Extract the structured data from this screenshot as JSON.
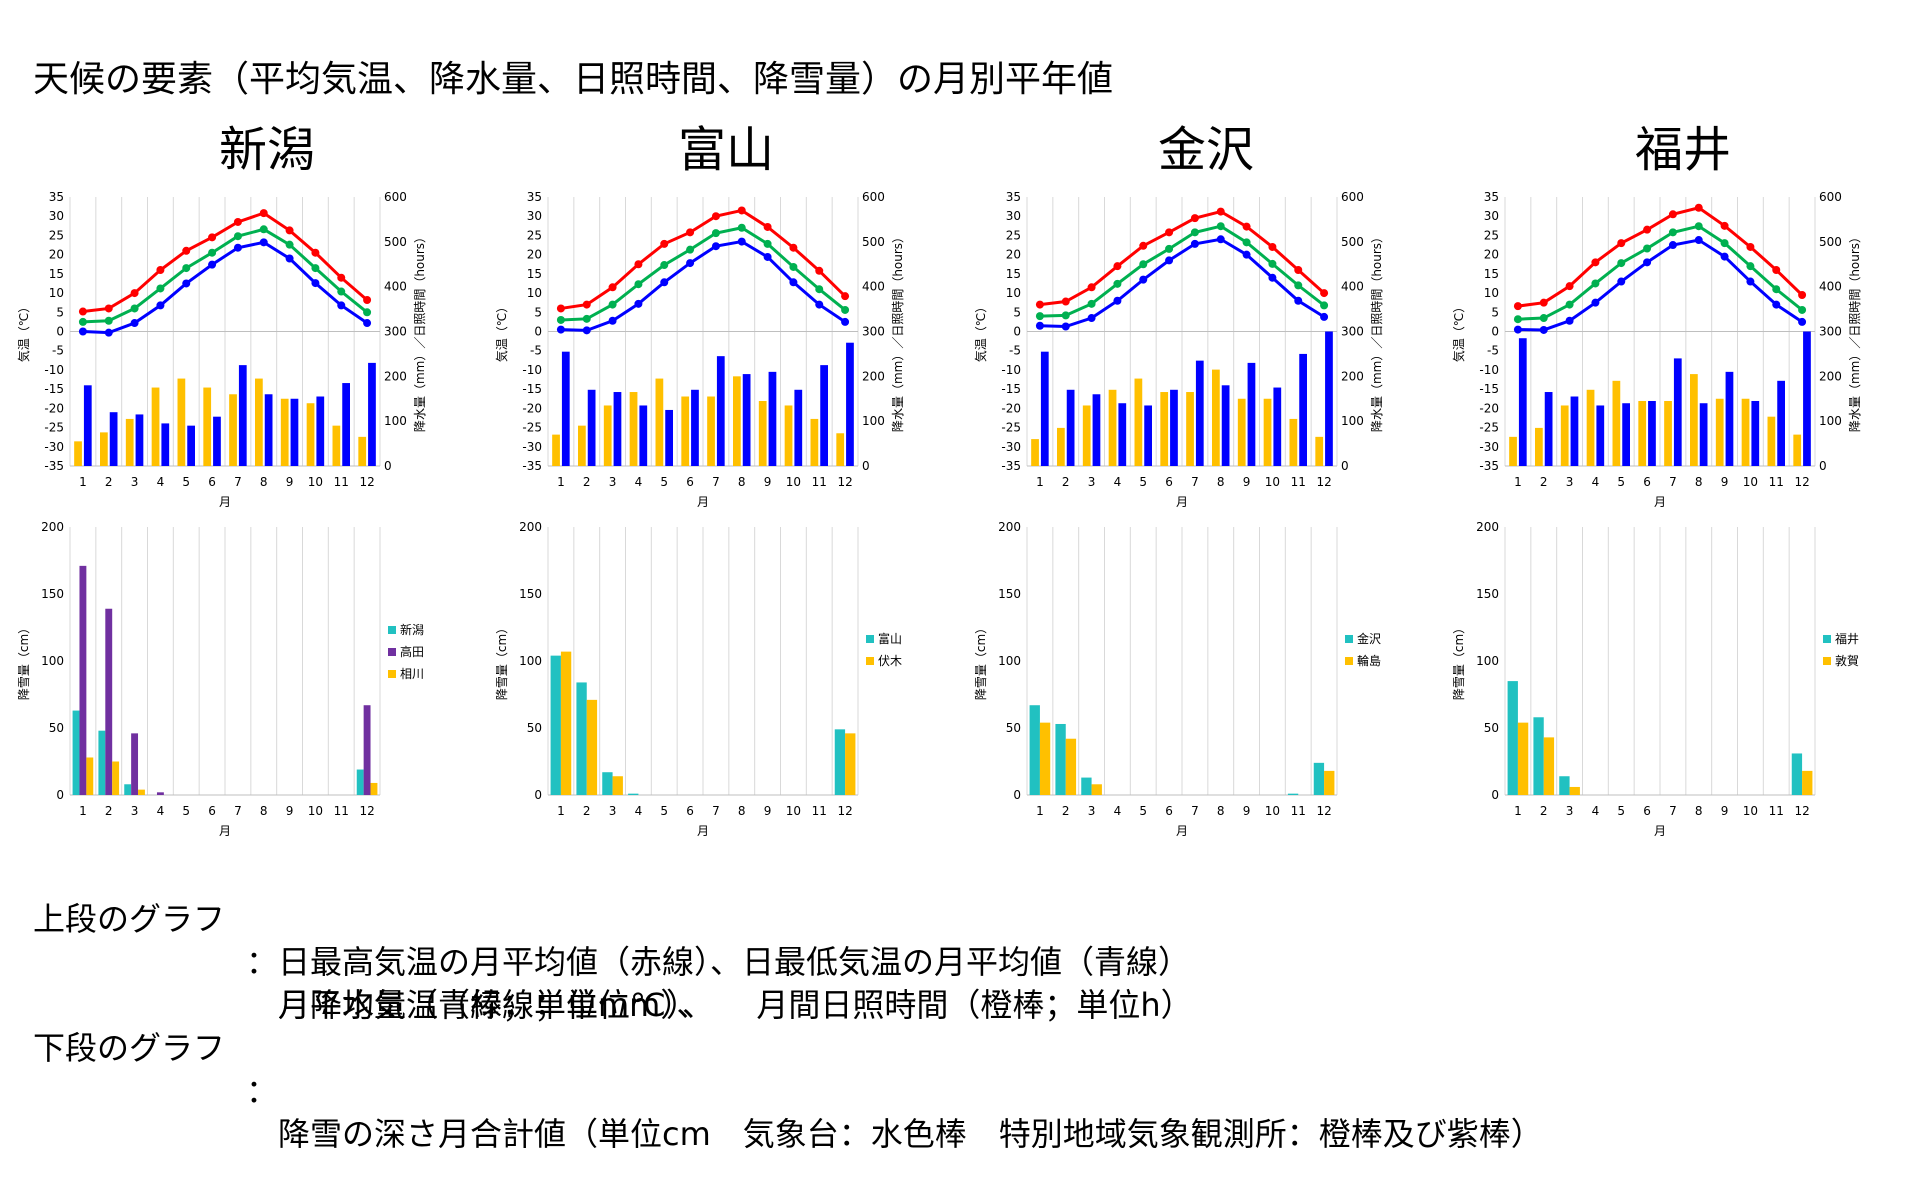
{
  "title": "天候の要素（平均気温、降水量、日照時間、降雪量）の月別平年値",
  "colors": {
    "max_temp": "#ff0000",
    "avg_temp": "#00b050",
    "min_temp": "#0000ff",
    "precip": "#0000ff",
    "sunshine": "#ffc000",
    "snow_obs": "#21c1c1",
    "snow_special_1": "#7030a0",
    "snow_special_2": "#ffc000"
  },
  "notes": {
    "upper_label": "上段のグラフ",
    "lower_label": "下段のグラフ",
    "colon": "：",
    "upper_line1": "月平均気温（緑線；単位℃）、",
    "upper_line2": "日最高気温の月平均値（赤線）、日最低気温の月平均値（青線）",
    "upper_line3": "月降水量（青棒；単位mm）、　　月間日照時間（橙棒；単位h）",
    "lower_line1": "降雪の深さ月合計値（単位cm　気象台：水色棒　特別地域気象観測所：橙棒及び紫棒）"
  },
  "chart_data": [
    {
      "city": "新潟",
      "type": "line+bar",
      "xlabel": "月",
      "ylabel_left": "気温（℃）",
      "ylabel_right": "降水量（mm）／日照時間（hours）",
      "ylim_left": [
        -35,
        35
      ],
      "ylim_right": [
        0,
        600
      ],
      "left_ticks": [
        35,
        30,
        25,
        20,
        15,
        10,
        5,
        0,
        -5,
        -10,
        -15,
        -20,
        -25,
        -30,
        -35
      ],
      "right_ticks": [
        600,
        500,
        400,
        300,
        200,
        100,
        0
      ],
      "categories": [
        "1",
        "2",
        "3",
        "4",
        "5",
        "6",
        "7",
        "8",
        "9",
        "10",
        "11",
        "12"
      ],
      "max_temp": [
        5.2,
        6.0,
        10.0,
        16.0,
        21.0,
        24.5,
        28.5,
        30.8,
        26.3,
        20.5,
        14.0,
        8.2
      ],
      "avg_temp": [
        2.5,
        2.8,
        6.0,
        11.2,
        16.5,
        20.5,
        24.8,
        26.6,
        22.6,
        16.5,
        10.4,
        5.0
      ],
      "min_temp": [
        0.0,
        -0.3,
        2.2,
        6.8,
        12.5,
        17.4,
        21.8,
        23.2,
        19.0,
        12.6,
        6.8,
        2.2
      ],
      "precip": [
        180,
        120,
        115,
        95,
        90,
        110,
        225,
        160,
        150,
        155,
        185,
        230
      ],
      "sunshine": [
        55,
        75,
        105,
        175,
        195,
        175,
        160,
        195,
        150,
        140,
        90,
        65
      ],
      "snow": {
        "title": "降雪量（cm）",
        "xlabel": "月",
        "ylim": [
          0,
          200
        ],
        "ticks": [
          200,
          150,
          100,
          50,
          0
        ],
        "series": [
          {
            "name": "新潟",
            "color_key": "snow_obs",
            "values": [
              63,
              48,
              8,
              0,
              0,
              0,
              0,
              0,
              0,
              0,
              0,
              19
            ]
          },
          {
            "name": "高田",
            "color_key": "snow_special_1",
            "values": [
              171,
              139,
              46,
              2,
              0,
              0,
              0,
              0,
              0,
              0,
              0,
              67
            ]
          },
          {
            "name": "相川",
            "color_key": "snow_special_2",
            "values": [
              28,
              25,
              4,
              0,
              0,
              0,
              0,
              0,
              0,
              0,
              0,
              9
            ]
          }
        ]
      }
    },
    {
      "city": "富山",
      "type": "line+bar",
      "xlabel": "月",
      "ylabel_left": "気温（℃）",
      "ylabel_right": "降水量（mm）／日照時間（hours）",
      "ylim_left": [
        -35,
        35
      ],
      "ylim_right": [
        0,
        600
      ],
      "left_ticks": [
        35,
        30,
        25,
        20,
        15,
        10,
        5,
        0,
        -5,
        -10,
        -15,
        -20,
        -25,
        -30,
        -35
      ],
      "right_ticks": [
        600,
        500,
        400,
        300,
        200,
        100,
        0
      ],
      "categories": [
        "1",
        "2",
        "3",
        "4",
        "5",
        "6",
        "7",
        "8",
        "9",
        "10",
        "11",
        "12"
      ],
      "max_temp": [
        6.0,
        7.0,
        11.5,
        17.5,
        22.8,
        25.8,
        30.0,
        31.5,
        27.2,
        21.8,
        15.8,
        9.2
      ],
      "avg_temp": [
        3.0,
        3.3,
        7.0,
        12.3,
        17.3,
        21.3,
        25.6,
        27.0,
        22.8,
        16.8,
        11.0,
        5.6
      ],
      "min_temp": [
        0.5,
        0.3,
        2.8,
        7.2,
        12.8,
        17.8,
        22.2,
        23.4,
        19.4,
        12.8,
        7.0,
        2.5
      ],
      "precip": [
        255,
        170,
        165,
        135,
        125,
        170,
        245,
        205,
        210,
        170,
        225,
        275
      ],
      "sunshine": [
        70,
        90,
        135,
        165,
        195,
        155,
        155,
        200,
        145,
        135,
        105,
        73
      ],
      "snow": {
        "title": "降雪量（cm）",
        "xlabel": "月",
        "ylim": [
          0,
          200
        ],
        "ticks": [
          200,
          150,
          100,
          50,
          0
        ],
        "series": [
          {
            "name": "富山",
            "color_key": "snow_obs",
            "values": [
              104,
              84,
              17,
              1,
              0,
              0,
              0,
              0,
              0,
              0,
              0,
              49
            ]
          },
          {
            "name": "伏木",
            "color_key": "snow_special_2",
            "values": [
              107,
              71,
              14,
              0,
              0,
              0,
              0,
              0,
              0,
              0,
              0,
              46
            ]
          }
        ]
      }
    },
    {
      "city": "金沢",
      "type": "line+bar",
      "xlabel": "月",
      "ylabel_left": "気温（℃）",
      "ylabel_right": "降水量（mm）／日照時間（hours）",
      "ylim_left": [
        -35,
        35
      ],
      "ylim_right": [
        0,
        600
      ],
      "left_ticks": [
        35,
        30,
        25,
        20,
        15,
        10,
        5,
        0,
        -5,
        -10,
        -15,
        -20,
        -25,
        -30,
        -35
      ],
      "right_ticks": [
        600,
        500,
        400,
        300,
        200,
        100,
        0
      ],
      "categories": [
        "1",
        "2",
        "3",
        "4",
        "5",
        "6",
        "7",
        "8",
        "9",
        "10",
        "11",
        "12"
      ],
      "max_temp": [
        7.0,
        7.8,
        11.5,
        17.0,
        22.3,
        25.8,
        29.5,
        31.2,
        27.3,
        22.0,
        16.0,
        10.0
      ],
      "avg_temp": [
        4.0,
        4.2,
        7.2,
        12.4,
        17.5,
        21.5,
        25.8,
        27.4,
        23.2,
        17.6,
        12.0,
        6.8
      ],
      "min_temp": [
        1.5,
        1.3,
        3.5,
        8.0,
        13.5,
        18.5,
        22.8,
        24.0,
        20.0,
        14.0,
        8.0,
        3.8
      ],
      "precip": [
        255,
        170,
        160,
        140,
        135,
        170,
        235,
        180,
        230,
        175,
        250,
        300
      ],
      "sunshine": [
        60,
        85,
        135,
        170,
        195,
        165,
        165,
        215,
        150,
        150,
        105,
        65
      ],
      "snow": {
        "title": "降雪量（cm）",
        "xlabel": "月",
        "ylim": [
          0,
          200
        ],
        "ticks": [
          200,
          150,
          100,
          50,
          0
        ],
        "series": [
          {
            "name": "金沢",
            "color_key": "snow_obs",
            "values": [
              67,
              53,
              13,
              0,
              0,
              0,
              0,
              0,
              0,
              0,
              1,
              24
            ]
          },
          {
            "name": "輪島",
            "color_key": "snow_special_2",
            "values": [
              54,
              42,
              8,
              0,
              0,
              0,
              0,
              0,
              0,
              0,
              0,
              18
            ]
          }
        ]
      }
    },
    {
      "city": "福井",
      "type": "line+bar",
      "xlabel": "月",
      "ylabel_left": "気温（℃）",
      "ylabel_right": "降水量（mm）／日照時間（hours）",
      "ylim_left": [
        -35,
        35
      ],
      "ylim_right": [
        0,
        600
      ],
      "left_ticks": [
        35,
        30,
        25,
        20,
        15,
        10,
        5,
        0,
        -5,
        -10,
        -15,
        -20,
        -25,
        -30,
        -35
      ],
      "right_ticks": [
        600,
        500,
        400,
        300,
        200,
        100,
        0
      ],
      "categories": [
        "1",
        "2",
        "3",
        "4",
        "5",
        "6",
        "7",
        "8",
        "9",
        "10",
        "11",
        "12"
      ],
      "max_temp": [
        6.6,
        7.5,
        11.8,
        18.0,
        23.0,
        26.5,
        30.5,
        32.2,
        27.5,
        22.0,
        16.0,
        9.5
      ],
      "avg_temp": [
        3.2,
        3.5,
        7.0,
        12.5,
        17.8,
        21.6,
        25.8,
        27.4,
        23.0,
        17.0,
        11.0,
        5.6
      ],
      "min_temp": [
        0.5,
        0.4,
        2.8,
        7.5,
        13.0,
        18.0,
        22.5,
        23.8,
        19.5,
        13.0,
        7.0,
        2.5
      ],
      "precip": [
        285,
        165,
        155,
        135,
        140,
        145,
        240,
        140,
        210,
        145,
        190,
        300
      ],
      "sunshine": [
        65,
        85,
        135,
        170,
        190,
        145,
        145,
        205,
        150,
        150,
        110,
        70
      ],
      "snow": {
        "title": "降雪量（cm）",
        "xlabel": "月",
        "ylim": [
          0,
          200
        ],
        "ticks": [
          200,
          150,
          100,
          50,
          0
        ],
        "series": [
          {
            "name": "福井",
            "color_key": "snow_obs",
            "values": [
              85,
              58,
              14,
              0,
              0,
              0,
              0,
              0,
              0,
              0,
              0,
              31
            ]
          },
          {
            "name": "敦賀",
            "color_key": "snow_special_2",
            "values": [
              54,
              43,
              6,
              0,
              0,
              0,
              0,
              0,
              0,
              0,
              0,
              18
            ]
          }
        ]
      }
    }
  ]
}
